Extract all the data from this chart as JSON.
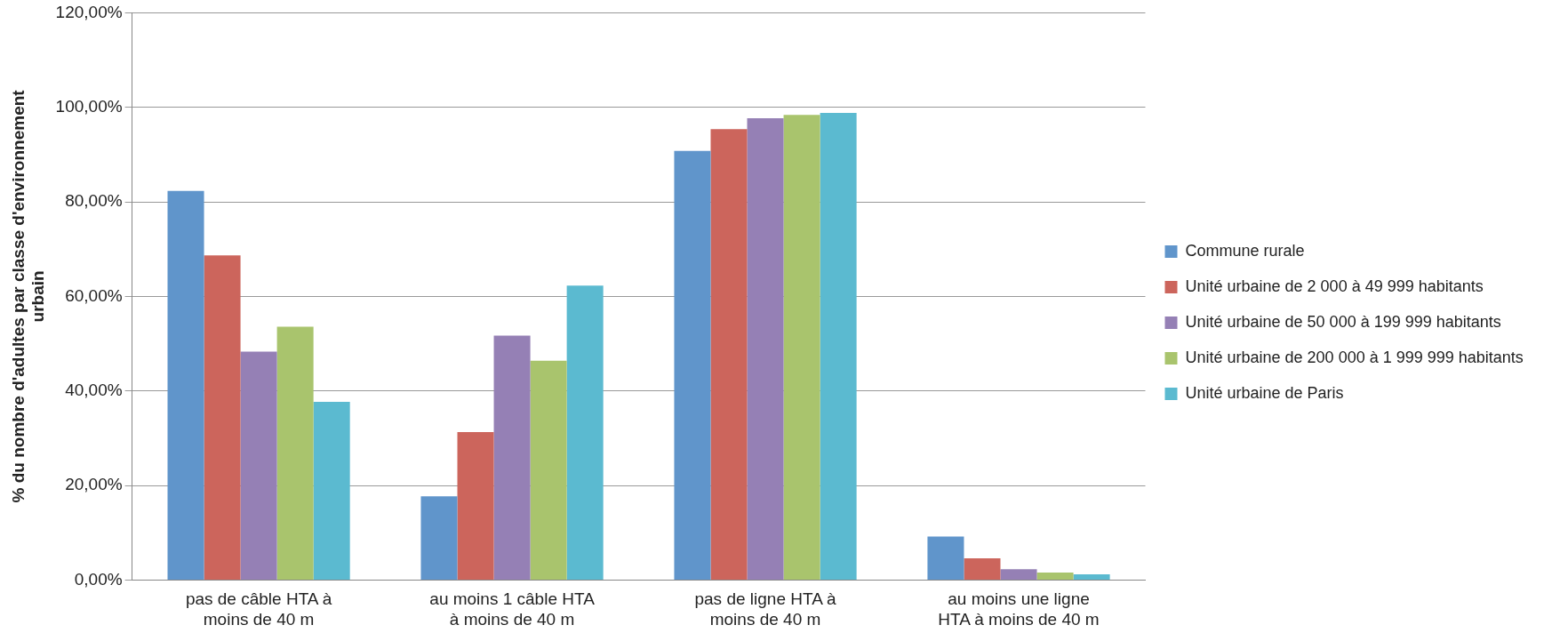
{
  "chart_data": {
    "type": "bar",
    "ylabel": "% du nombre d'adultes par classe d'environnement urbain",
    "categories": [
      "pas de câble HTA à moins de 40 m",
      "au moins 1 câble HTA à moins de 40 m",
      "pas de ligne HTA à moins de 40 m",
      "au moins une ligne HTA à moins de 40 m"
    ],
    "series": [
      {
        "name": "Commune rurale",
        "color": "#6095cb",
        "values": [
          82.3,
          17.7,
          90.8,
          9.2
        ]
      },
      {
        "name": "Unité urbaine de 2 000 à 49 999 habitants",
        "color": "#cc655c",
        "values": [
          68.7,
          31.3,
          95.4,
          4.6
        ]
      },
      {
        "name": "Unité urbaine de 50 000 à 199 999 habitants",
        "color": "#9580b5",
        "values": [
          48.3,
          51.7,
          97.7,
          2.3
        ]
      },
      {
        "name": "Unité urbaine de 200 000 à 1 999 999 habitants",
        "color": "#a9c46d",
        "values": [
          53.6,
          46.4,
          98.4,
          1.6
        ]
      },
      {
        "name": "Unité urbaine de Paris",
        "color": "#5bbad0",
        "values": [
          37.7,
          62.3,
          98.8,
          1.2
        ]
      }
    ],
    "ylim": [
      0,
      120
    ],
    "yticks": [
      {
        "value": 0,
        "label": "0,00%"
      },
      {
        "value": 20,
        "label": "20,00%"
      },
      {
        "value": 40,
        "label": "40,00%"
      },
      {
        "value": 60,
        "label": "60,00%"
      },
      {
        "value": 80,
        "label": "80,00%"
      },
      {
        "value": 100,
        "label": "100,00%"
      },
      {
        "value": 120,
        "label": "120,00%"
      }
    ],
    "grid": "y",
    "legend": "right"
  }
}
